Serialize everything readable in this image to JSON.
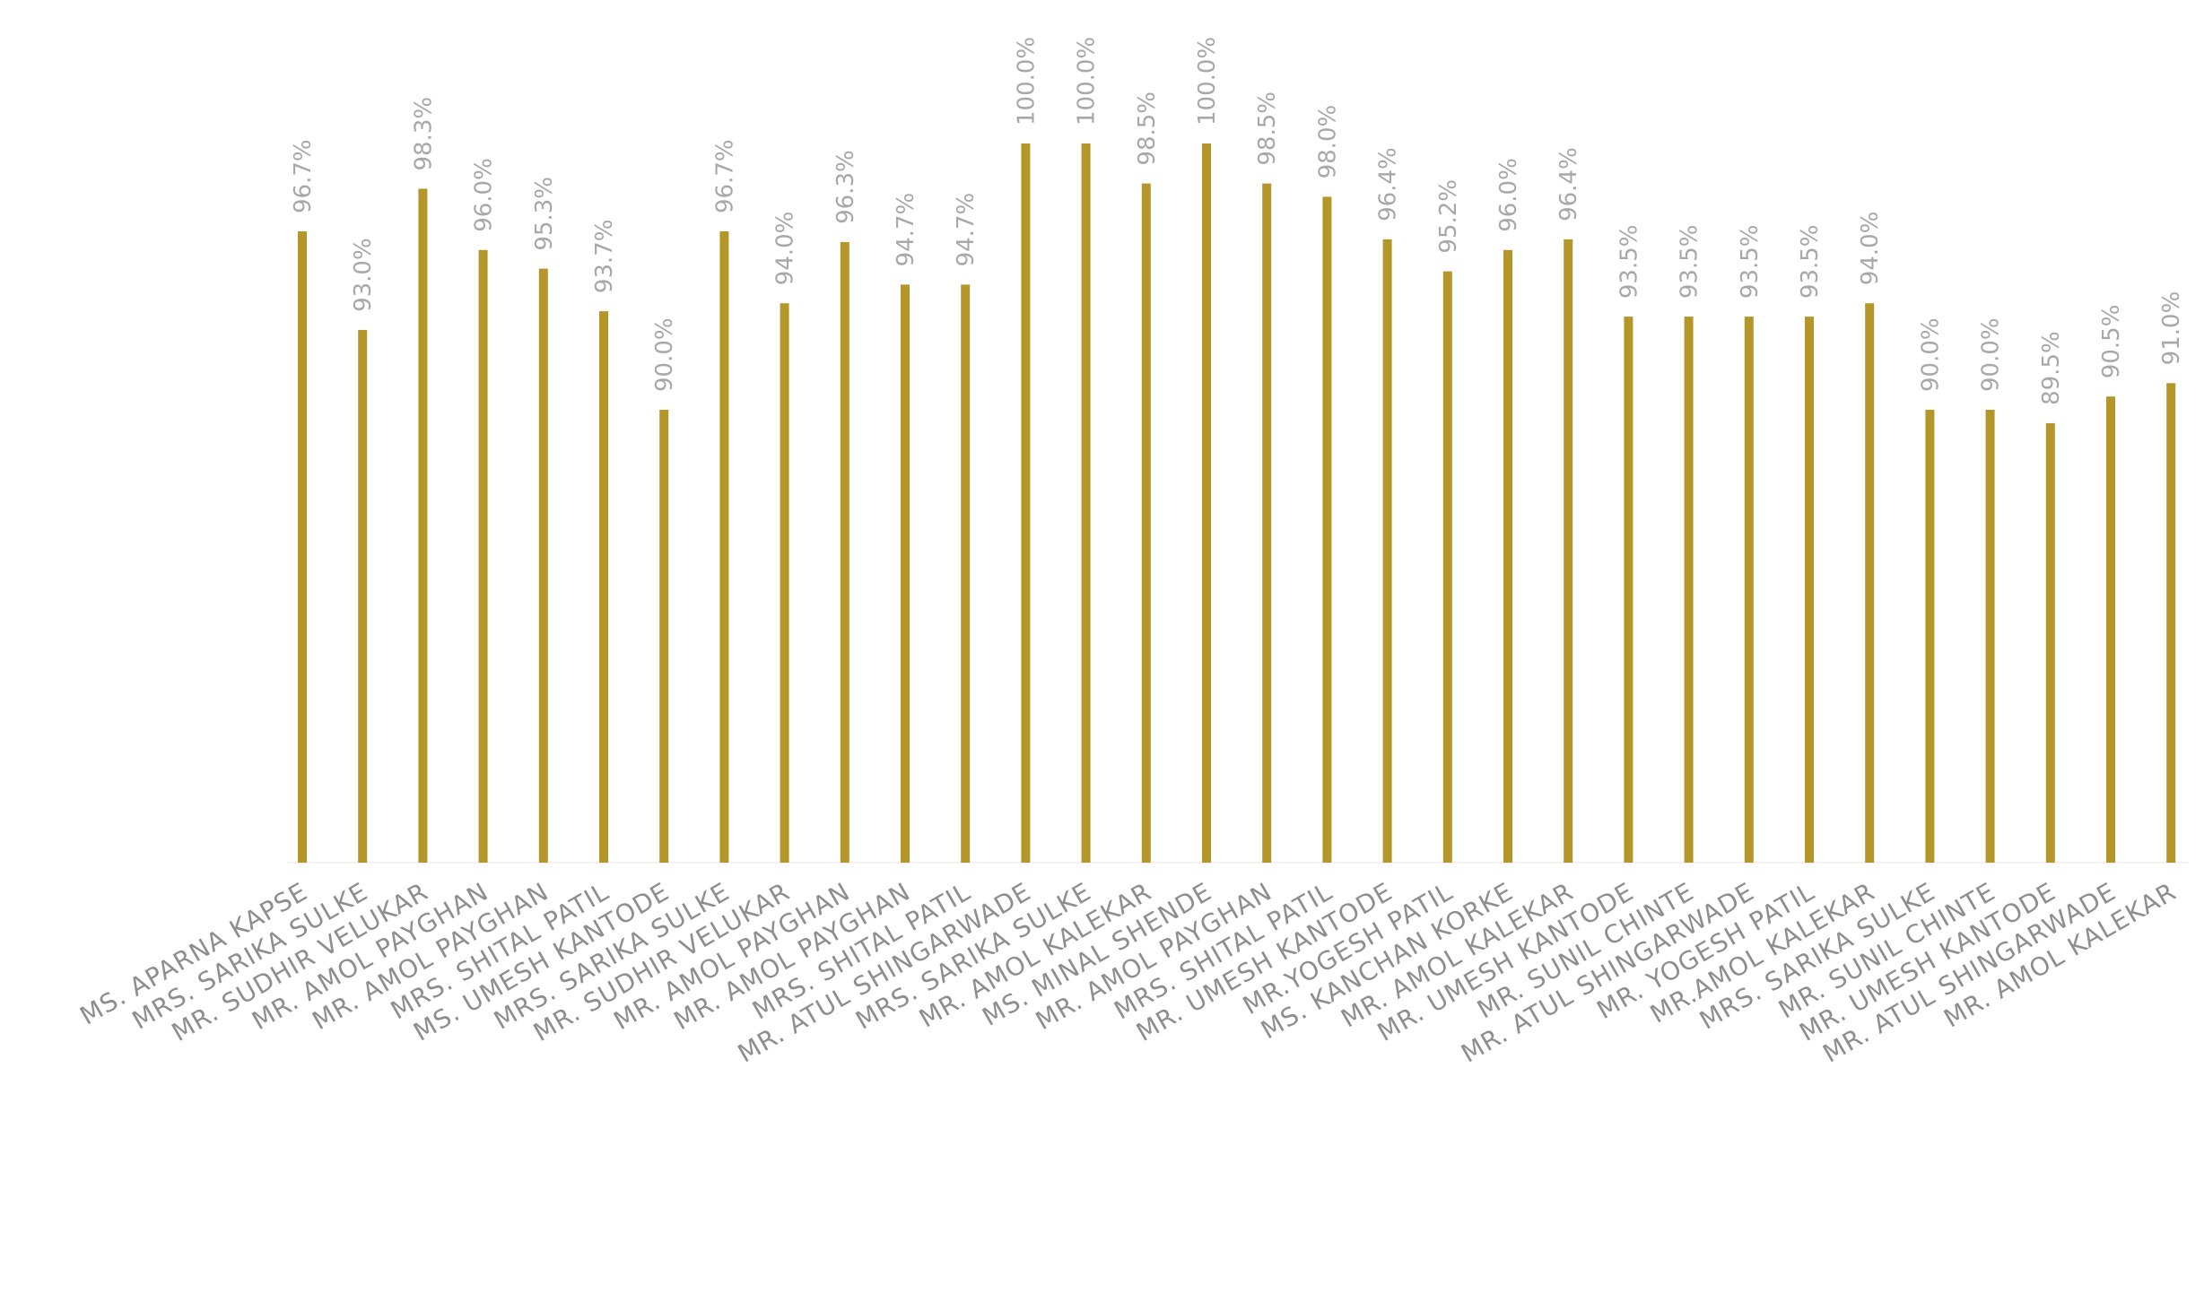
{
  "chart_data": {
    "type": "bar",
    "title": "",
    "xlabel": "",
    "ylabel": "",
    "colors": {
      "bar": "#b5962b",
      "data_label": "#a8a8a8",
      "category_label": "#8e8e8e"
    },
    "grid": false,
    "legend": "none",
    "ylim": [
      73,
      100
    ],
    "categories": [
      "MS. APARNA KAPSE",
      "MRS. SARIKA SULKE",
      "MR. SUDHIR VELUKAR",
      "MR. AMOL PAYGHAN",
      "MR. AMOL PAYGHAN",
      "MRS. SHITAL PATIL",
      "MS. UMESH KANTODE",
      "MRS. SARIKA SULKE",
      "MR. SUDHIR VELUKAR",
      "MR. AMOL PAYGHAN",
      "MR. AMOL PAYGHAN",
      "MRS. SHITAL PATIL",
      "MR. ATUL SHINGARWADE",
      "MRS. SARIKA SULKE",
      "MR. AMOL KALEKAR",
      "MS. MINAL SHENDE",
      "MR. AMOL PAYGHAN",
      "MRS. SHITAL PATIL",
      "MR. UMESH KANTODE",
      "MR.YOGESH PATIL",
      "MS. KANCHAN KORKE",
      "MR. AMOL KALEKAR",
      "MR. UMESH KANTODE",
      "MR. SUNIL CHINTE",
      "MR. ATUL SHINGARWADE",
      "MR. YOGESH PATIL",
      "MR.AMOL KALEKAR",
      "MRS. SARIKA SULKE",
      "MR. SUNIL CHINTE",
      "MR. UMESH KANTODE",
      "MR. ATUL SHINGARWADE",
      "MR. AMOL KALEKAR"
    ],
    "values": [
      96.7,
      93.0,
      98.3,
      96.0,
      95.3,
      93.7,
      90.0,
      96.7,
      94.0,
      96.3,
      94.7,
      94.7,
      100.0,
      100.0,
      98.5,
      100.0,
      98.5,
      98.0,
      96.4,
      95.2,
      96.0,
      96.4,
      93.5,
      93.5,
      93.5,
      93.5,
      94.0,
      90.0,
      90.0,
      89.5,
      90.5,
      91.0
    ],
    "data_labels": [
      "96.7%",
      "93.0%",
      "98.3%",
      "96.0%",
      "95.3%",
      "93.7%",
      "90.0%",
      "96.7%",
      "94.0%",
      "96.3%",
      "94.7%",
      "94.7%",
      "100.0%",
      "100.0%",
      "98.5%",
      "100.0%",
      "98.5%",
      "98.0%",
      "96.4%",
      "95.2%",
      "96.0%",
      "96.4%",
      "93.5%",
      "93.5%",
      "93.5%",
      "93.5%",
      "94.0%",
      "90.0%",
      "90.0%",
      "89.5%",
      "90.5%",
      "91.0%"
    ]
  }
}
